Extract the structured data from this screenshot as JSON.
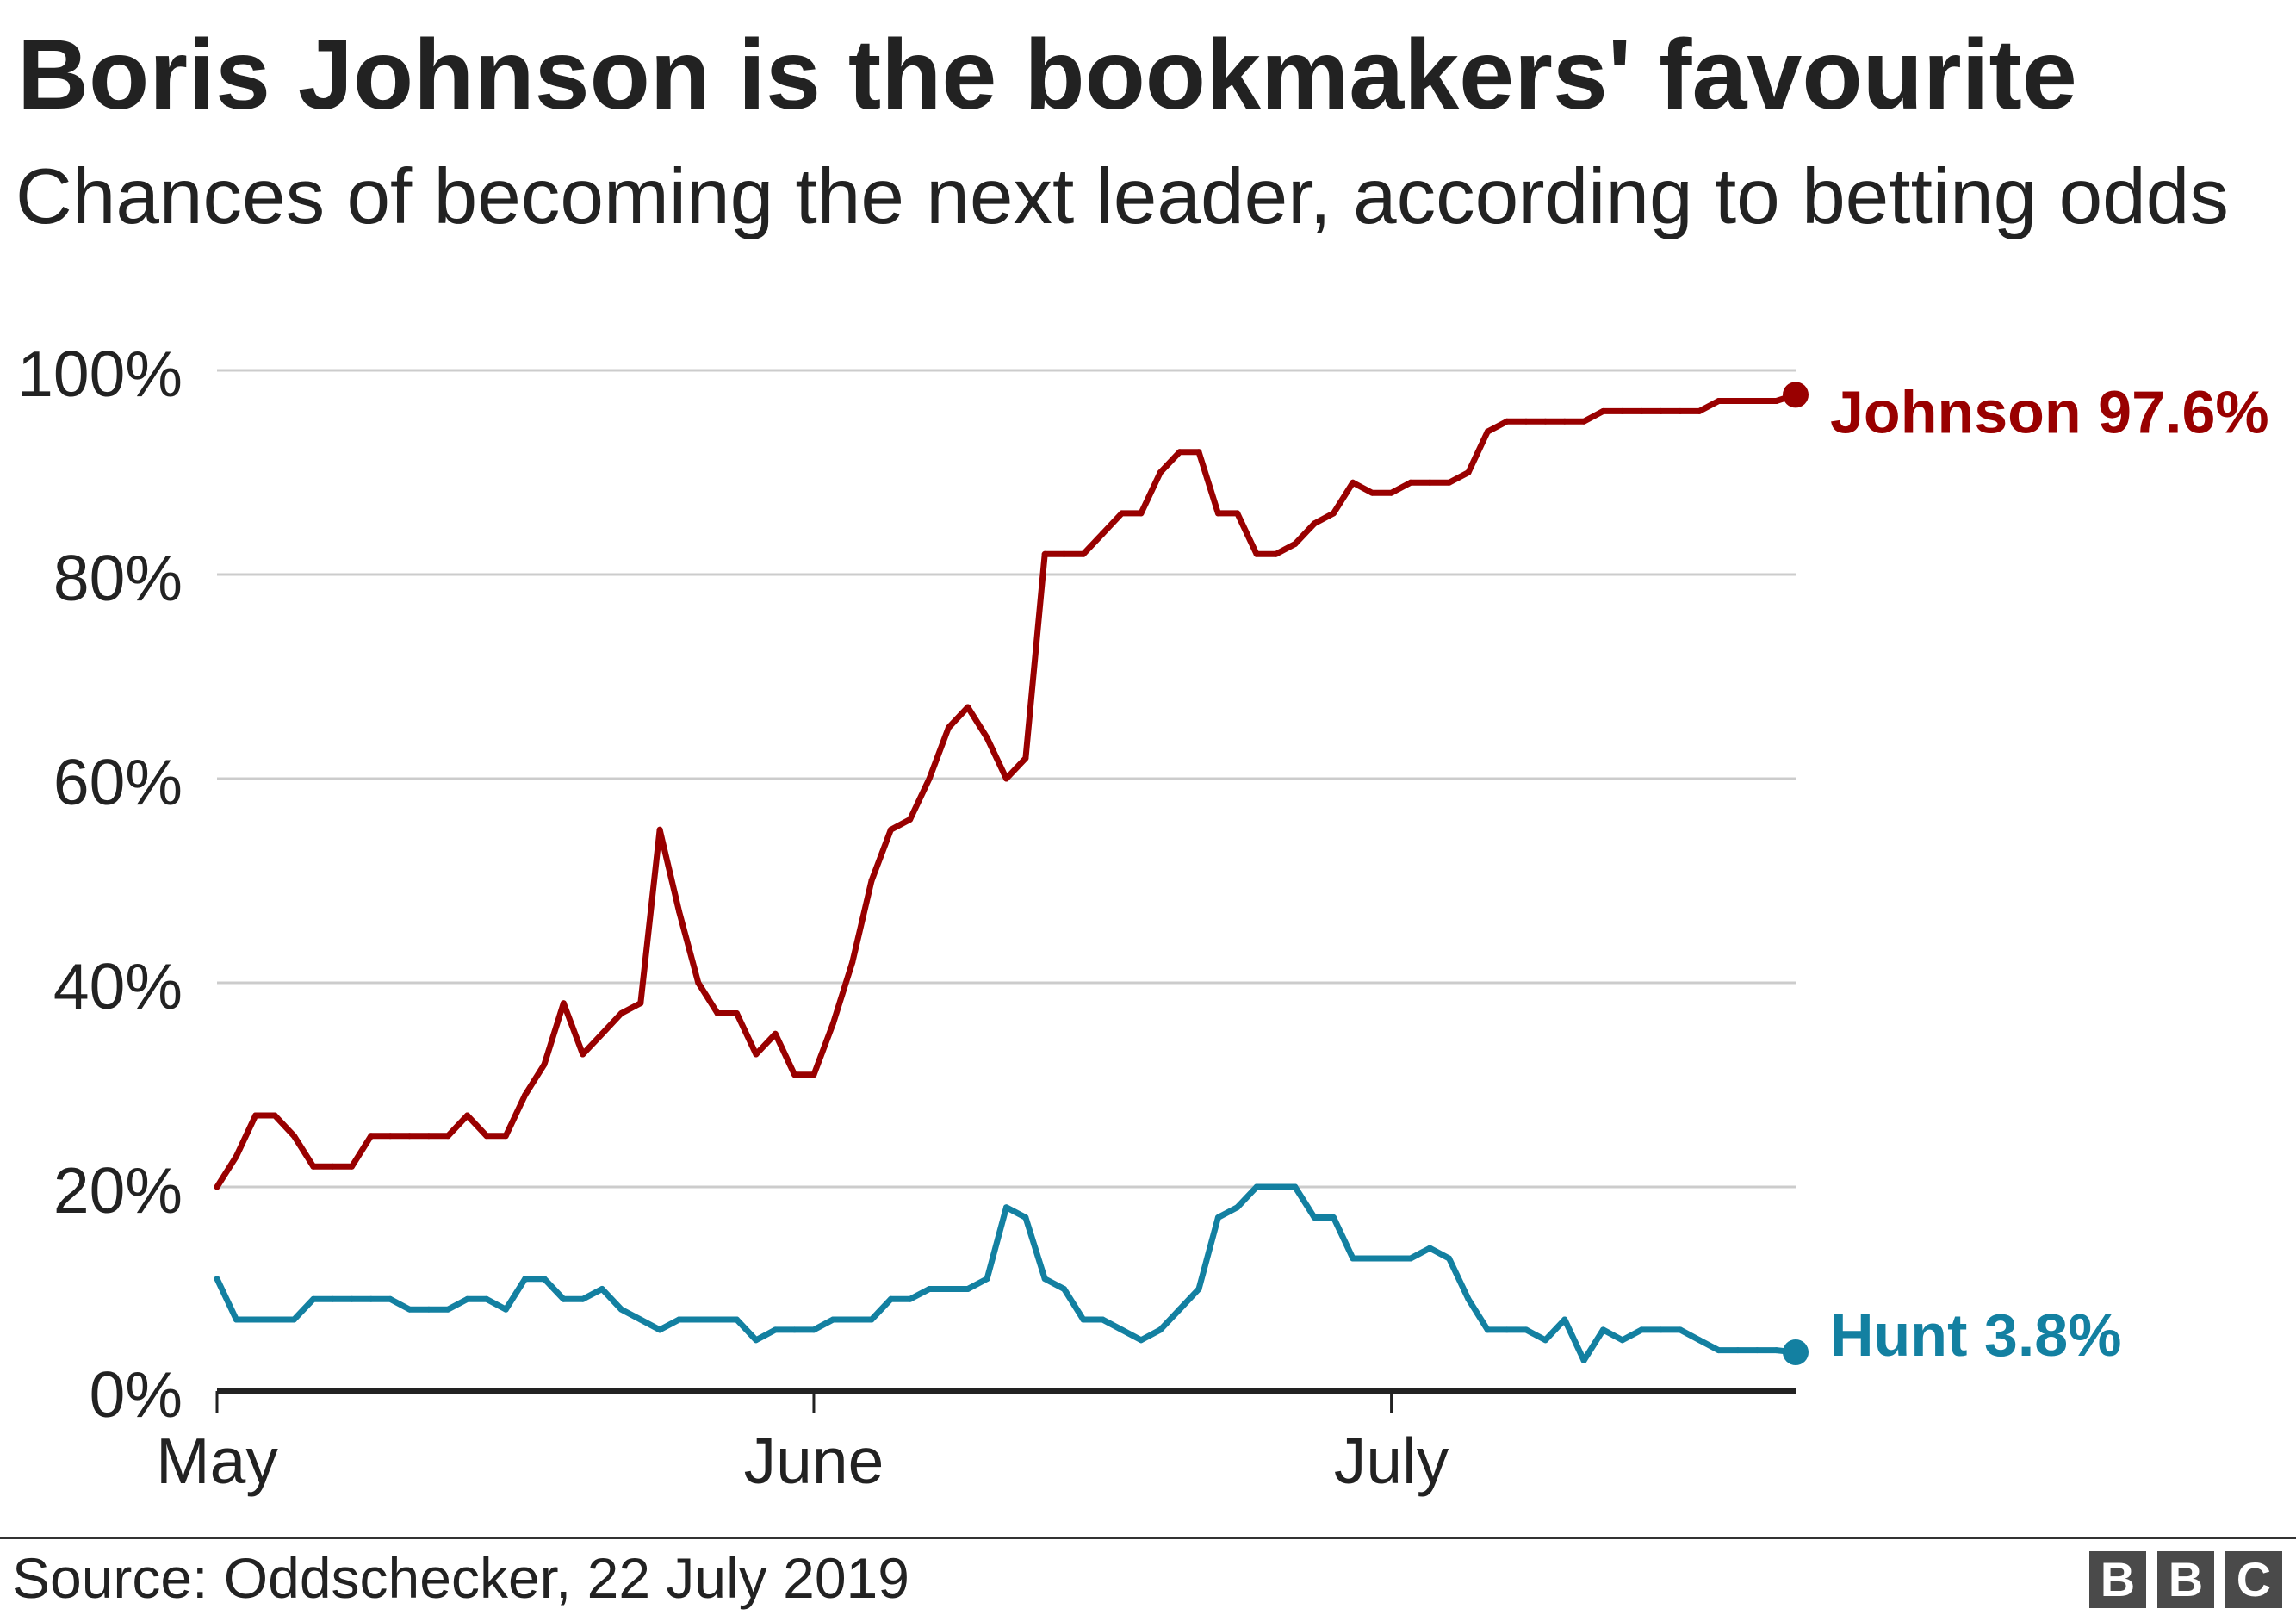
{
  "chart_data": {
    "type": "line",
    "title": "Boris Johnson is the bookmakers' favourite",
    "subtitle": "Chances of becoming the next leader, according to betting odds",
    "x": [
      "2019-05-01",
      "2019-05-02",
      "2019-05-03",
      "2019-05-04",
      "2019-05-05",
      "2019-05-06",
      "2019-05-07",
      "2019-05-08",
      "2019-05-09",
      "2019-05-10",
      "2019-05-11",
      "2019-05-12",
      "2019-05-13",
      "2019-05-14",
      "2019-05-15",
      "2019-05-16",
      "2019-05-17",
      "2019-05-18",
      "2019-05-19",
      "2019-05-20",
      "2019-05-21",
      "2019-05-22",
      "2019-05-23",
      "2019-05-24",
      "2019-05-25",
      "2019-05-26",
      "2019-05-27",
      "2019-05-28",
      "2019-05-29",
      "2019-05-30",
      "2019-05-31",
      "2019-06-01",
      "2019-06-02",
      "2019-06-03",
      "2019-06-04",
      "2019-06-05",
      "2019-06-06",
      "2019-06-07",
      "2019-06-08",
      "2019-06-09",
      "2019-06-10",
      "2019-06-11",
      "2019-06-12",
      "2019-06-13",
      "2019-06-14",
      "2019-06-15",
      "2019-06-16",
      "2019-06-17",
      "2019-06-18",
      "2019-06-19",
      "2019-06-20",
      "2019-06-21",
      "2019-06-22",
      "2019-06-23",
      "2019-06-24",
      "2019-06-25",
      "2019-06-26",
      "2019-06-27",
      "2019-06-28",
      "2019-06-29",
      "2019-06-30",
      "2019-07-01",
      "2019-07-02",
      "2019-07-03",
      "2019-07-04",
      "2019-07-05",
      "2019-07-06",
      "2019-07-07",
      "2019-07-08",
      "2019-07-09",
      "2019-07-10",
      "2019-07-11",
      "2019-07-12",
      "2019-07-13",
      "2019-07-14",
      "2019-07-15",
      "2019-07-16",
      "2019-07-17",
      "2019-07-18",
      "2019-07-19",
      "2019-07-20",
      "2019-07-21",
      "2019-07-22"
    ],
    "xlim": [
      "2019-05-01",
      "2019-07-22"
    ],
    "ylim": [
      0,
      100
    ],
    "x_ticks": [
      "2019-05-01",
      "2019-06-01",
      "2019-07-01"
    ],
    "x_tick_labels": [
      "May",
      "June",
      "July"
    ],
    "y_ticks": [
      0,
      20,
      40,
      60,
      80,
      100
    ],
    "y_tick_labels": [
      "0%",
      "20%",
      "40%",
      "60%",
      "80%",
      "100%"
    ],
    "grid": true,
    "series": [
      {
        "name": "Johnson",
        "value_label": "97.6%",
        "color": "#990000",
        "values": [
          20,
          23,
          27,
          27,
          25,
          22,
          22,
          22,
          25,
          25,
          25,
          25,
          25,
          27,
          25,
          25,
          29,
          32,
          38,
          33,
          35,
          37,
          38,
          55,
          47,
          40,
          37,
          37,
          33,
          35,
          31,
          31,
          36,
          42,
          50,
          55,
          56,
          60,
          65,
          67,
          64,
          60,
          62,
          82,
          82,
          82,
          84,
          86,
          86,
          90,
          92,
          92,
          86,
          86,
          82,
          82,
          83,
          85,
          86,
          89,
          88,
          88,
          89,
          89,
          89,
          90,
          94,
          95,
          95,
          95,
          95,
          95,
          96,
          96,
          96,
          96,
          96,
          96,
          97,
          97,
          97,
          97,
          97.6
        ]
      },
      {
        "name": "Hunt",
        "value_label": "3.8%",
        "color": "#1380a1",
        "values": [
          11,
          7,
          7,
          7,
          7,
          9,
          9,
          9,
          9,
          9,
          8,
          8,
          8,
          9,
          9,
          8,
          11,
          11,
          9,
          9,
          10,
          8,
          7,
          6,
          7,
          7,
          7,
          7,
          5,
          6,
          6,
          6,
          7,
          7,
          7,
          9,
          9,
          10,
          10,
          10,
          11,
          18,
          17,
          11,
          10,
          7,
          7,
          6,
          5,
          6,
          8,
          10,
          17,
          18,
          20,
          20,
          20,
          17,
          17,
          13,
          13,
          13,
          13,
          14,
          13,
          9,
          6,
          6,
          6,
          5,
          7,
          3,
          6,
          5,
          6,
          6,
          6,
          5,
          4,
          4,
          4,
          4,
          3.8
        ]
      }
    ]
  },
  "footer": {
    "source": "Source: Oddschecker, 22 July 2019",
    "logo_letters": [
      "B",
      "B",
      "C"
    ]
  }
}
